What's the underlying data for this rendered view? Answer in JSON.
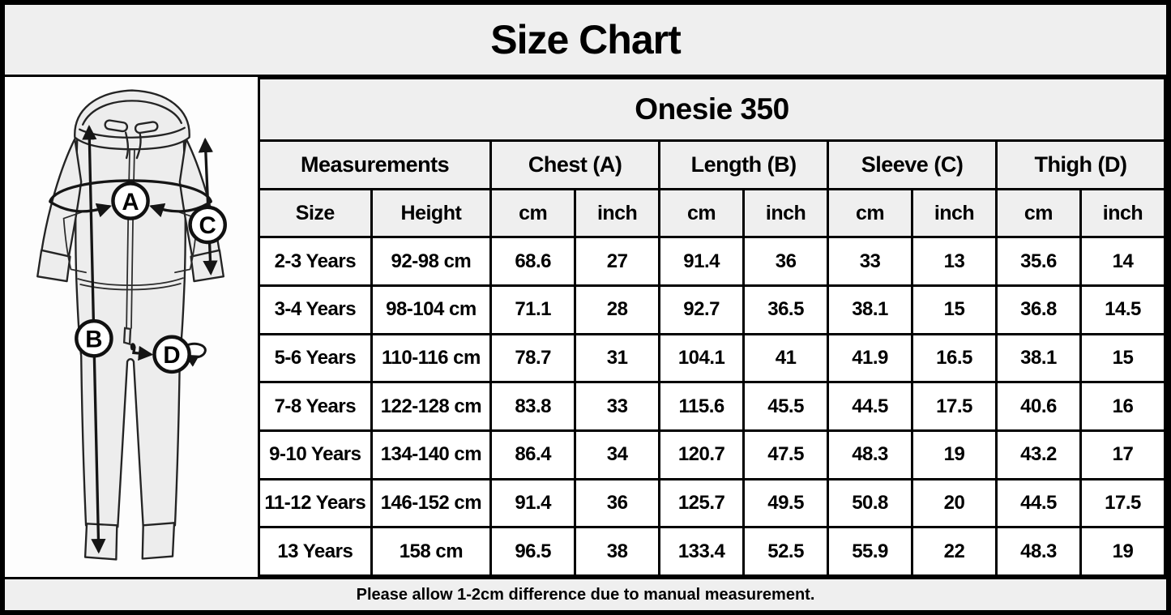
{
  "title": "Size Chart",
  "product": "Onesie 350",
  "footer_note": "Please allow 1-2cm difference due to manual measurement.",
  "diagram": {
    "labels": [
      "A",
      "B",
      "C",
      "D"
    ]
  },
  "table": {
    "group_headers": [
      {
        "label": "Measurements",
        "span": 2
      },
      {
        "label": "Chest (A)",
        "span": 2
      },
      {
        "label": "Length (B)",
        "span": 2
      },
      {
        "label": "Sleeve (C)",
        "span": 2
      },
      {
        "label": "Thigh (D)",
        "span": 2
      }
    ],
    "sub_headers": [
      "Size",
      "Height",
      "cm",
      "inch",
      "cm",
      "inch",
      "cm",
      "inch",
      "cm",
      "inch"
    ],
    "rows": [
      [
        "2-3 Years",
        "92-98 cm",
        "68.6",
        "27",
        "91.4",
        "36",
        "33",
        "13",
        "35.6",
        "14"
      ],
      [
        "3-4 Years",
        "98-104 cm",
        "71.1",
        "28",
        "92.7",
        "36.5",
        "38.1",
        "15",
        "36.8",
        "14.5"
      ],
      [
        "5-6 Years",
        "110-116 cm",
        "78.7",
        "31",
        "104.1",
        "41",
        "41.9",
        "16.5",
        "38.1",
        "15"
      ],
      [
        "7-8 Years",
        "122-128 cm",
        "83.8",
        "33",
        "115.6",
        "45.5",
        "44.5",
        "17.5",
        "40.6",
        "16"
      ],
      [
        "9-10 Years",
        "134-140 cm",
        "86.4",
        "34",
        "120.7",
        "47.5",
        "48.3",
        "19",
        "43.2",
        "17"
      ],
      [
        "11-12 Years",
        "146-152 cm",
        "91.4",
        "36",
        "125.7",
        "49.5",
        "50.8",
        "20",
        "44.5",
        "17.5"
      ],
      [
        "13 Years",
        "158 cm",
        "96.5",
        "38",
        "133.4",
        "52.5",
        "55.9",
        "22",
        "48.3",
        "19"
      ]
    ]
  },
  "colors": {
    "header_bg": "#efefef",
    "row_bg": "#ffffff",
    "grid": "#000000",
    "text": "#000000"
  }
}
